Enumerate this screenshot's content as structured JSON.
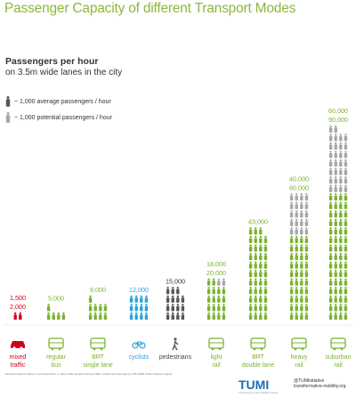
{
  "title": "Passenger Capacity of different Transport Modes",
  "subtitle": "Passengers per hour",
  "subtitle2": "on 3.5m wide lanes in the city",
  "legend": [
    {
      "label": "~ 1,000 average passengers / hour",
      "color": "#555555"
    },
    {
      "label": "~ 1,000 potential passengers / hour",
      "color": "#a6a6a6"
    }
  ],
  "chart_data": {
    "type": "pictogram-bar",
    "unit": "1,000 passengers per hour",
    "categories": [
      {
        "label": [
          "mixed",
          "traffic"
        ],
        "average": 1500,
        "potential": 2000,
        "color": "#d0021b",
        "icon": "car-icon"
      },
      {
        "label": [
          "regular",
          "bus"
        ],
        "average": 5000,
        "potential": 5000,
        "color": "#7ab32e",
        "icon": "bus-icon"
      },
      {
        "label": [
          "BRT",
          "single lane"
        ],
        "average": 9000,
        "potential": 9000,
        "color": "#7ab32e",
        "icon": "brt-icon"
      },
      {
        "label": [
          "cyclists"
        ],
        "average": 12000,
        "potential": 12000,
        "color": "#2aa2dc",
        "icon": "bicycle-icon"
      },
      {
        "label": [
          "pedestrians"
        ],
        "average": 15000,
        "potential": 15000,
        "color": "#555555",
        "icon": "pedestrian-icon"
      },
      {
        "label": [
          "light",
          "rail"
        ],
        "average": 18000,
        "potential": 20000,
        "color": "#7ab32e",
        "icon": "tram-icon"
      },
      {
        "label": [
          "BRT",
          "double lane"
        ],
        "average": 43000,
        "potential": 43000,
        "color": "#7ab32e",
        "icon": "brt-double-icon"
      },
      {
        "label": [
          "heavy",
          "rail"
        ],
        "average": 40000,
        "potential": 60000,
        "color": "#7ab32e",
        "icon": "train-icon"
      },
      {
        "label": [
          "suburban",
          "rail"
        ],
        "average": 60000,
        "potential": 90000,
        "color": "#7ab32e",
        "icon": "suburban-train-icon"
      }
    ],
    "value_labels": [
      [
        "1,500",
        "2,000"
      ],
      [
        "5,000"
      ],
      [
        "9,000"
      ],
      [
        "12,000"
      ],
      [
        "15,000"
      ],
      [
        "18,000",
        "20,000"
      ],
      [
        "43,000"
      ],
      [
        "40,000",
        "60,000"
      ],
      [
        "60,000",
        "90,000"
      ]
    ]
  },
  "footer": "Illustration based on: Botma, H. and Papendrecht, H. (1991) Traffic operation of bicycle traffic. TU-Delft; http://www.uitp.org; UITP (2009). Public Transport in figures.",
  "brand": {
    "logo": "TUMI",
    "tagline": "Transformative Urban Mobility Initiative",
    "handle": "@TUMInitiative",
    "url": "transformative-mobility.org"
  }
}
